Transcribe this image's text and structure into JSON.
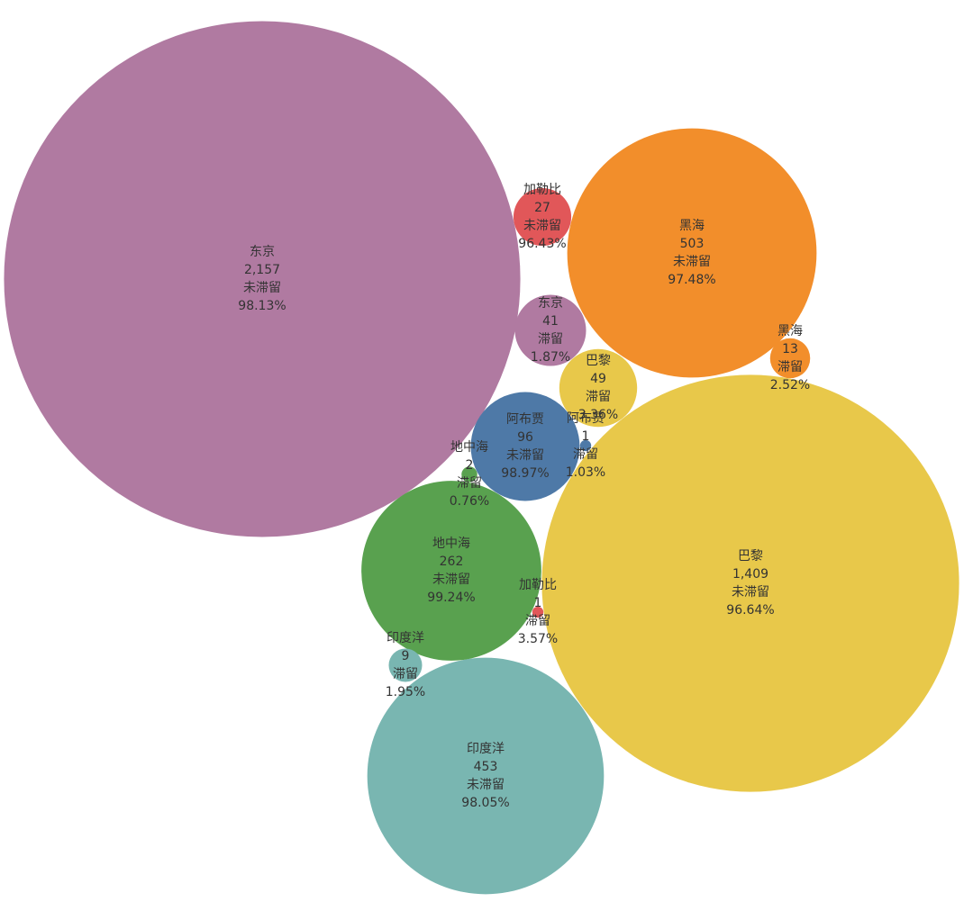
{
  "chart_data": {
    "type": "bubble",
    "categories": [
      "东京",
      "巴黎",
      "黑海",
      "印度洋",
      "地中海",
      "阿布贾",
      "巴黎",
      "东京",
      "加勒比",
      "黑海",
      "印度洋",
      "地中海",
      "阿布贾",
      "加勒比"
    ],
    "values": [
      2157,
      1409,
      503,
      453,
      262,
      96,
      49,
      41,
      27,
      13,
      9,
      2,
      1,
      1
    ],
    "value_labels": [
      "2,157",
      "1,409",
      "503",
      "453",
      "262",
      "96",
      "49",
      "41",
      "27",
      "13",
      "9",
      "2",
      "1",
      "1"
    ],
    "status": [
      "未滞留",
      "未滞留",
      "未滞留",
      "未滞留",
      "未滞留",
      "未滞留",
      "滞留",
      "滞留",
      "未滞留",
      "滞留",
      "滞留",
      "滞留",
      "滞留",
      "滞留"
    ],
    "percents": [
      {
        "value": 98.13,
        "label": "98.13%"
      },
      {
        "value": 96.64,
        "label": "96.64%"
      },
      {
        "value": 97.48,
        "label": "97.48%"
      },
      {
        "value": 98.05,
        "label": "98.05%"
      },
      {
        "value": 99.24,
        "label": "99.24%"
      },
      {
        "value": 98.97,
        "label": "98.97%"
      },
      {
        "value": 3.36,
        "label": "3.36%"
      },
      {
        "value": 1.87,
        "label": "1.87%"
      },
      {
        "value": 96.43,
        "label": "96.43%"
      },
      {
        "value": 2.52,
        "label": "2.52%"
      },
      {
        "value": 1.95,
        "label": "1.95%"
      },
      {
        "value": 0.76,
        "label": "0.76%"
      },
      {
        "value": 1.03,
        "label": "1.03%"
      },
      {
        "value": 3.57,
        "label": "3.57%"
      }
    ],
    "colors": [
      "#b07aa1",
      "#e8c84a",
      "#f28e2b",
      "#79b6b1",
      "#59a14f",
      "#4e79a7",
      "#e8c84a",
      "#b07aa1",
      "#e15759",
      "#f28e2b",
      "#79b6b1",
      "#59a14f",
      "#4e79a7",
      "#e15759"
    ]
  }
}
